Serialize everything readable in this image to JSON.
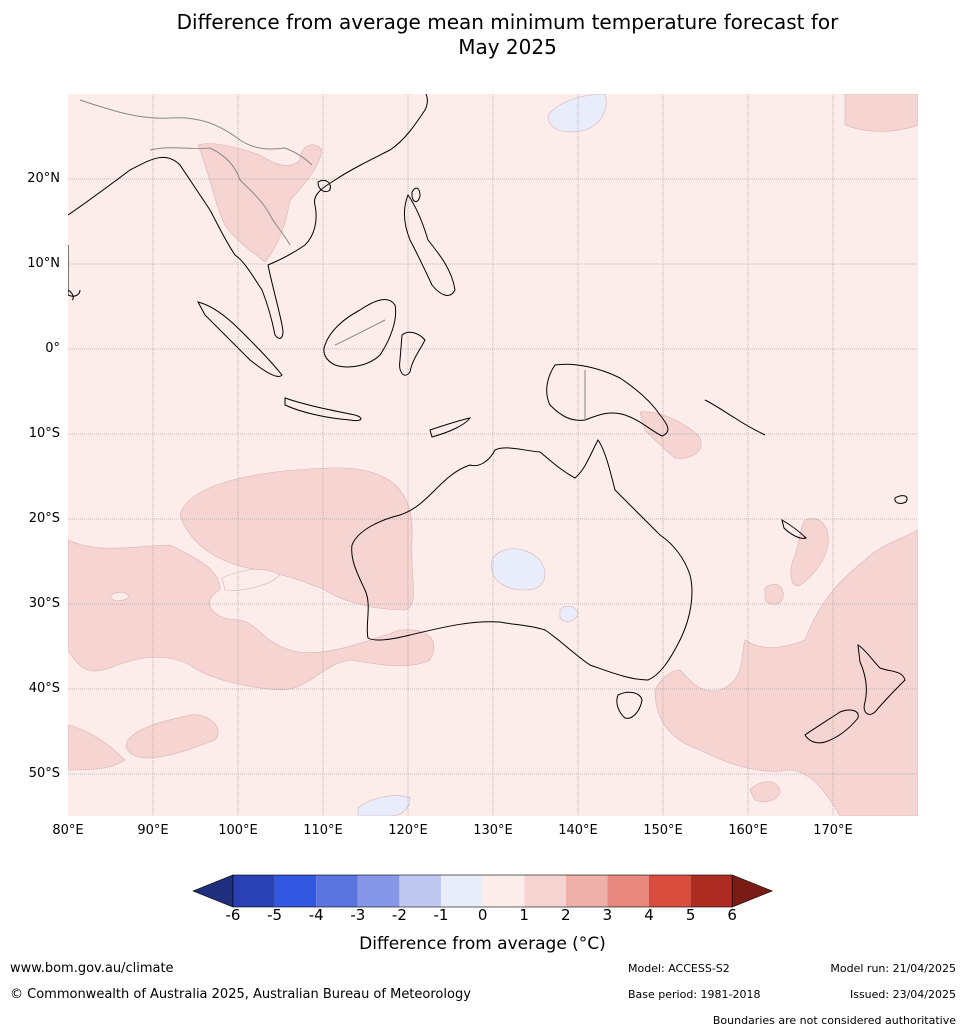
{
  "title": {
    "line1": "Difference from average mean minimum temperature forecast for",
    "line2": "May 2025"
  },
  "map": {
    "lon_labels": [
      "80°E",
      "90°E",
      "100°E",
      "110°E",
      "120°E",
      "130°E",
      "140°E",
      "150°E",
      "160°E",
      "170°E"
    ],
    "lat_labels": [
      "20°N",
      "10°N",
      "0°",
      "10°S",
      "20°S",
      "30°S",
      "40°S",
      "50°S"
    ]
  },
  "colorbar": {
    "ticks": [
      "-6",
      "-5",
      "-4",
      "-3",
      "-2",
      "-1",
      "0",
      "1",
      "2",
      "3",
      "4",
      "5",
      "6"
    ],
    "colors": [
      "#1f2f7e",
      "#2a41b4",
      "#3257e0",
      "#5a74e0",
      "#8797e8",
      "#c0c8f2",
      "#e8ecfb",
      "#fcecea",
      "#f6d4d2",
      "#eeb0a9",
      "#e8877d",
      "#d94d3f",
      "#ad2b21",
      "#7a1b15"
    ],
    "label": "Difference from average (°C)"
  },
  "footer": {
    "site": "www.bom.gov.au/climate",
    "copyright": "© Commonwealth of Australia 2025, Australian Bureau of Meteorology",
    "model": "Model: ACCESS-S2",
    "model_run": "Model run: 21/04/2025",
    "base_period": "Base period: 1981-2018",
    "issued": "Issued: 23/04/2025",
    "disclaimer": "Boundaries are not considered authoritative"
  }
}
